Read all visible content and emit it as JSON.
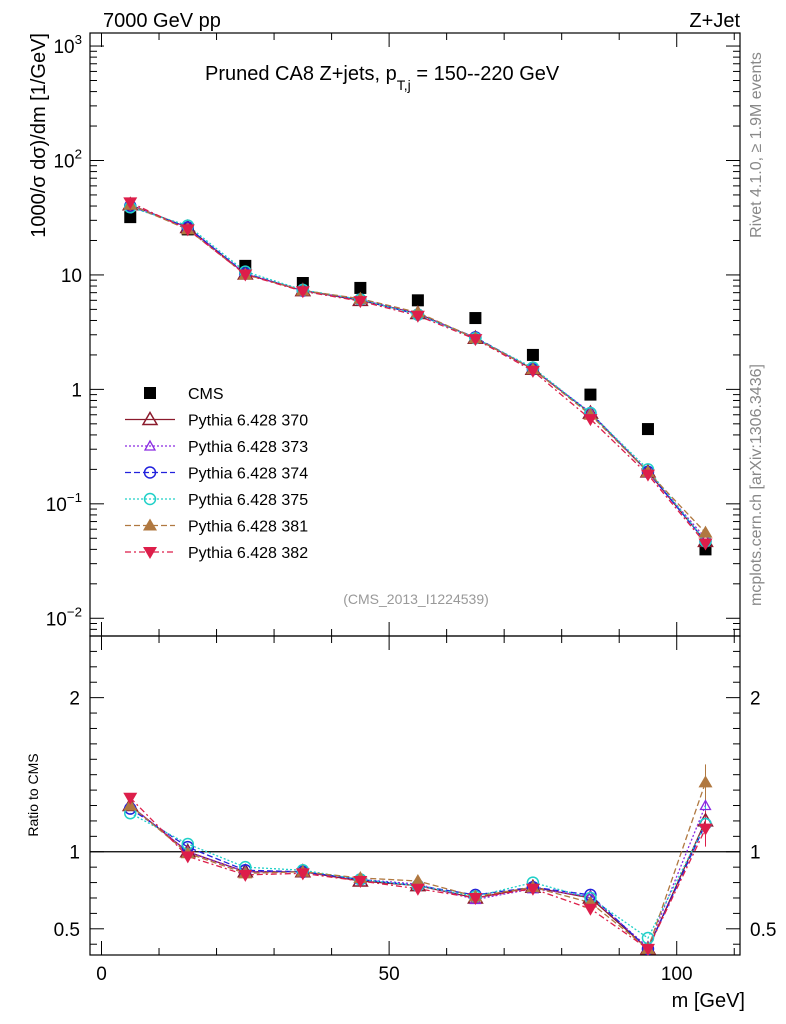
{
  "header": {
    "left": "7000 GeV pp",
    "right": "Z+Jet",
    "title_main": "Pruned CA8 Z+jets, p",
    "title_sub": "T,j",
    "title_rest": " = 150--220 GeV",
    "side_rivet": "Rivet 4.1.0, ≥ 1.9M events",
    "side_mcplots": "mcplots.cern.ch [arXiv:1306.3436]",
    "analysis": "(CMS_2013_I1224539)"
  },
  "chart_data": [
    {
      "type": "scatter",
      "panel": "main",
      "yscale": "log",
      "ylabel": "1000/σ   dσ)/dm [1/GeV]",
      "xlim": [
        -2,
        111
      ],
      "ylim": [
        0.007,
        1300
      ],
      "x": [
        5,
        15,
        25,
        35,
        45,
        55,
        65,
        75,
        85,
        95,
        105
      ],
      "y_ticks": [
        {
          "v": 0.01,
          "base": "10",
          "exp": "−2"
        },
        {
          "v": 0.1,
          "base": "10",
          "exp": "−1"
        },
        {
          "v": 1,
          "base": "1",
          "exp": ""
        },
        {
          "v": 10,
          "base": "10",
          "exp": ""
        },
        {
          "v": 100,
          "base": "10",
          "exp": "2"
        },
        {
          "v": 1000,
          "base": "10",
          "exp": "3"
        }
      ],
      "series": [
        {
          "name": "CMS",
          "values": [
            32,
            25,
            12,
            8.5,
            7.7,
            6.0,
            4.2,
            2.0,
            0.9,
            0.45,
            0.04
          ]
        },
        {
          "name": "Pythia 6.428 370",
          "values": [
            41,
            26,
            10.2,
            7.3,
            6.0,
            4.6,
            2.8,
            1.5,
            0.62,
            0.19,
            0.047
          ]
        },
        {
          "name": "Pythia 6.428 373",
          "values": [
            41,
            26,
            10.2,
            7.3,
            6.1,
            4.6,
            2.8,
            1.5,
            0.63,
            0.19,
            0.05
          ]
        },
        {
          "name": "Pythia 6.428 374",
          "values": [
            40,
            26,
            10.3,
            7.3,
            6.1,
            4.5,
            2.85,
            1.5,
            0.62,
            0.19,
            0.047
          ]
        },
        {
          "name": "Pythia 6.428 375",
          "values": [
            39,
            27,
            10.7,
            7.4,
            6.1,
            4.5,
            2.8,
            1.55,
            0.62,
            0.2,
            0.047
          ]
        },
        {
          "name": "Pythia 6.428 381",
          "values": [
            41,
            25,
            10.1,
            7.3,
            6.2,
            4.7,
            2.8,
            1.5,
            0.6,
            0.19,
            0.056
          ]
        },
        {
          "name": "Pythia 6.428 382",
          "values": [
            43,
            25,
            10.1,
            7.2,
            5.9,
            4.4,
            2.75,
            1.45,
            0.55,
            0.18,
            0.045
          ]
        }
      ]
    },
    {
      "type": "line",
      "panel": "ratio",
      "ylabel": "Ratio to CMS",
      "xlabel": "m [GeV]",
      "xlim": [
        -2,
        111
      ],
      "ylim": [
        0.33,
        2.4
      ],
      "x": [
        5,
        15,
        25,
        35,
        45,
        55,
        65,
        75,
        85,
        95,
        105
      ],
      "x_ticks": [
        0,
        50,
        100
      ],
      "y_ticks": [
        0.5,
        1,
        2
      ],
      "series": [
        {
          "name": "Pythia 6.428 370",
          "values": [
            1.3,
            1.0,
            0.87,
            0.87,
            0.81,
            0.78,
            0.7,
            0.77,
            0.7,
            0.37,
            1.2
          ]
        },
        {
          "name": "Pythia 6.428 373",
          "values": [
            1.3,
            1.0,
            0.87,
            0.87,
            0.82,
            0.79,
            0.69,
            0.76,
            0.71,
            0.38,
            1.3
          ]
        },
        {
          "name": "Pythia 6.428 374",
          "values": [
            1.28,
            1.03,
            0.88,
            0.87,
            0.82,
            0.78,
            0.72,
            0.77,
            0.72,
            0.37,
            1.18
          ]
        },
        {
          "name": "Pythia 6.428 375",
          "values": [
            1.25,
            1.05,
            0.9,
            0.88,
            0.82,
            0.78,
            0.71,
            0.8,
            0.7,
            0.44,
            1.18
          ]
        },
        {
          "name": "Pythia 6.428 381",
          "values": [
            1.3,
            0.99,
            0.86,
            0.87,
            0.83,
            0.81,
            0.71,
            0.77,
            0.67,
            0.37,
            1.45
          ]
        },
        {
          "name": "Pythia 6.428 382",
          "values": [
            1.35,
            0.97,
            0.85,
            0.86,
            0.81,
            0.76,
            0.7,
            0.76,
            0.63,
            0.37,
            1.15
          ]
        }
      ]
    }
  ],
  "styles": [
    {
      "color": "#000000",
      "marker": "square",
      "dash": "none"
    },
    {
      "color": "#8b1a2c",
      "marker": "triangle-open",
      "dash": "none"
    },
    {
      "color": "#8a2be2",
      "marker": "triangle-open-small",
      "dash": "2,2"
    },
    {
      "color": "#2222dd",
      "marker": "circle-open",
      "dash": "6,3"
    },
    {
      "color": "#20d0c8",
      "marker": "circle-open",
      "dash": "2,2"
    },
    {
      "color": "#b07840",
      "marker": "triangle-filled",
      "dash": "6,3"
    },
    {
      "color": "#dd1e4a",
      "marker": "triangle-down-filled",
      "dash": "6,3,2,3"
    }
  ]
}
